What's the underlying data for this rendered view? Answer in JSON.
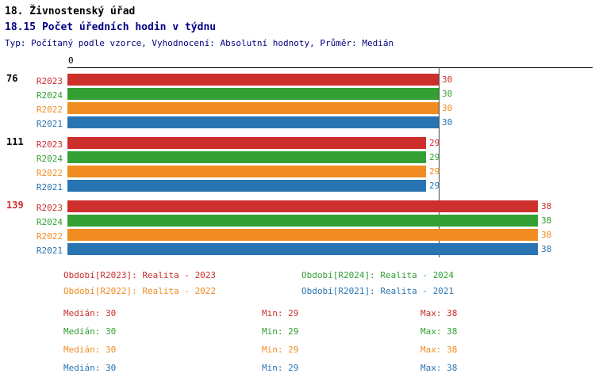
{
  "header": {
    "line1": "18. Živnostenský úřad",
    "line2": "18.15 Počet úředních hodin v týdnu",
    "subtitle": "Typ: Počítaný podle vzorce, Vyhodnocení: Absolutní hodnoty, Průměr: Medián"
  },
  "chart_data": {
    "type": "bar",
    "orientation": "horizontal",
    "title": "18.15 Počet úředních hodin v týdnu",
    "axis": {
      "origin_label": "0",
      "x_range": [
        0,
        42
      ],
      "median_line_value": 30,
      "grid": false
    },
    "series_order": [
      "R2023",
      "R2024",
      "R2022",
      "R2021"
    ],
    "series_colors": {
      "R2023": "#cc2f2c",
      "R2024": "#33a033",
      "R2022": "#f08c21",
      "R2021": "#2874b2"
    },
    "groups": [
      {
        "label": "76",
        "label_color": "#000000",
        "values": {
          "R2023": 30,
          "R2024": 30,
          "R2022": 30,
          "R2021": 30
        }
      },
      {
        "label": "111",
        "label_color": "#000000",
        "values": {
          "R2023": 29,
          "R2024": 29,
          "R2022": 29,
          "R2021": 29
        }
      },
      {
        "label": "139",
        "label_color": "#cc2f2c",
        "values": {
          "R2023": 38,
          "R2024": 38,
          "R2022": 38,
          "R2021": 38
        }
      }
    ],
    "legend": [
      {
        "series": "R2023",
        "text": "Období[R2023]: Realita - 2023"
      },
      {
        "series": "R2024",
        "text": "Období[R2024]: Realita - 2024"
      },
      {
        "series": "R2022",
        "text": "Období[R2022]: Realita - 2022"
      },
      {
        "series": "R2021",
        "text": "Období[R2021]: Realita - 2021"
      }
    ],
    "stat_labels": {
      "median": "Medián",
      "min": "Min",
      "max": "Max"
    },
    "stats": [
      {
        "series": "R2023",
        "median": 30,
        "min": 29,
        "max": 38
      },
      {
        "series": "R2024",
        "median": 30,
        "min": 29,
        "max": 38
      },
      {
        "series": "R2022",
        "median": 30,
        "min": 29,
        "max": 38
      },
      {
        "series": "R2021",
        "median": 30,
        "min": 29,
        "max": 38
      }
    ]
  }
}
